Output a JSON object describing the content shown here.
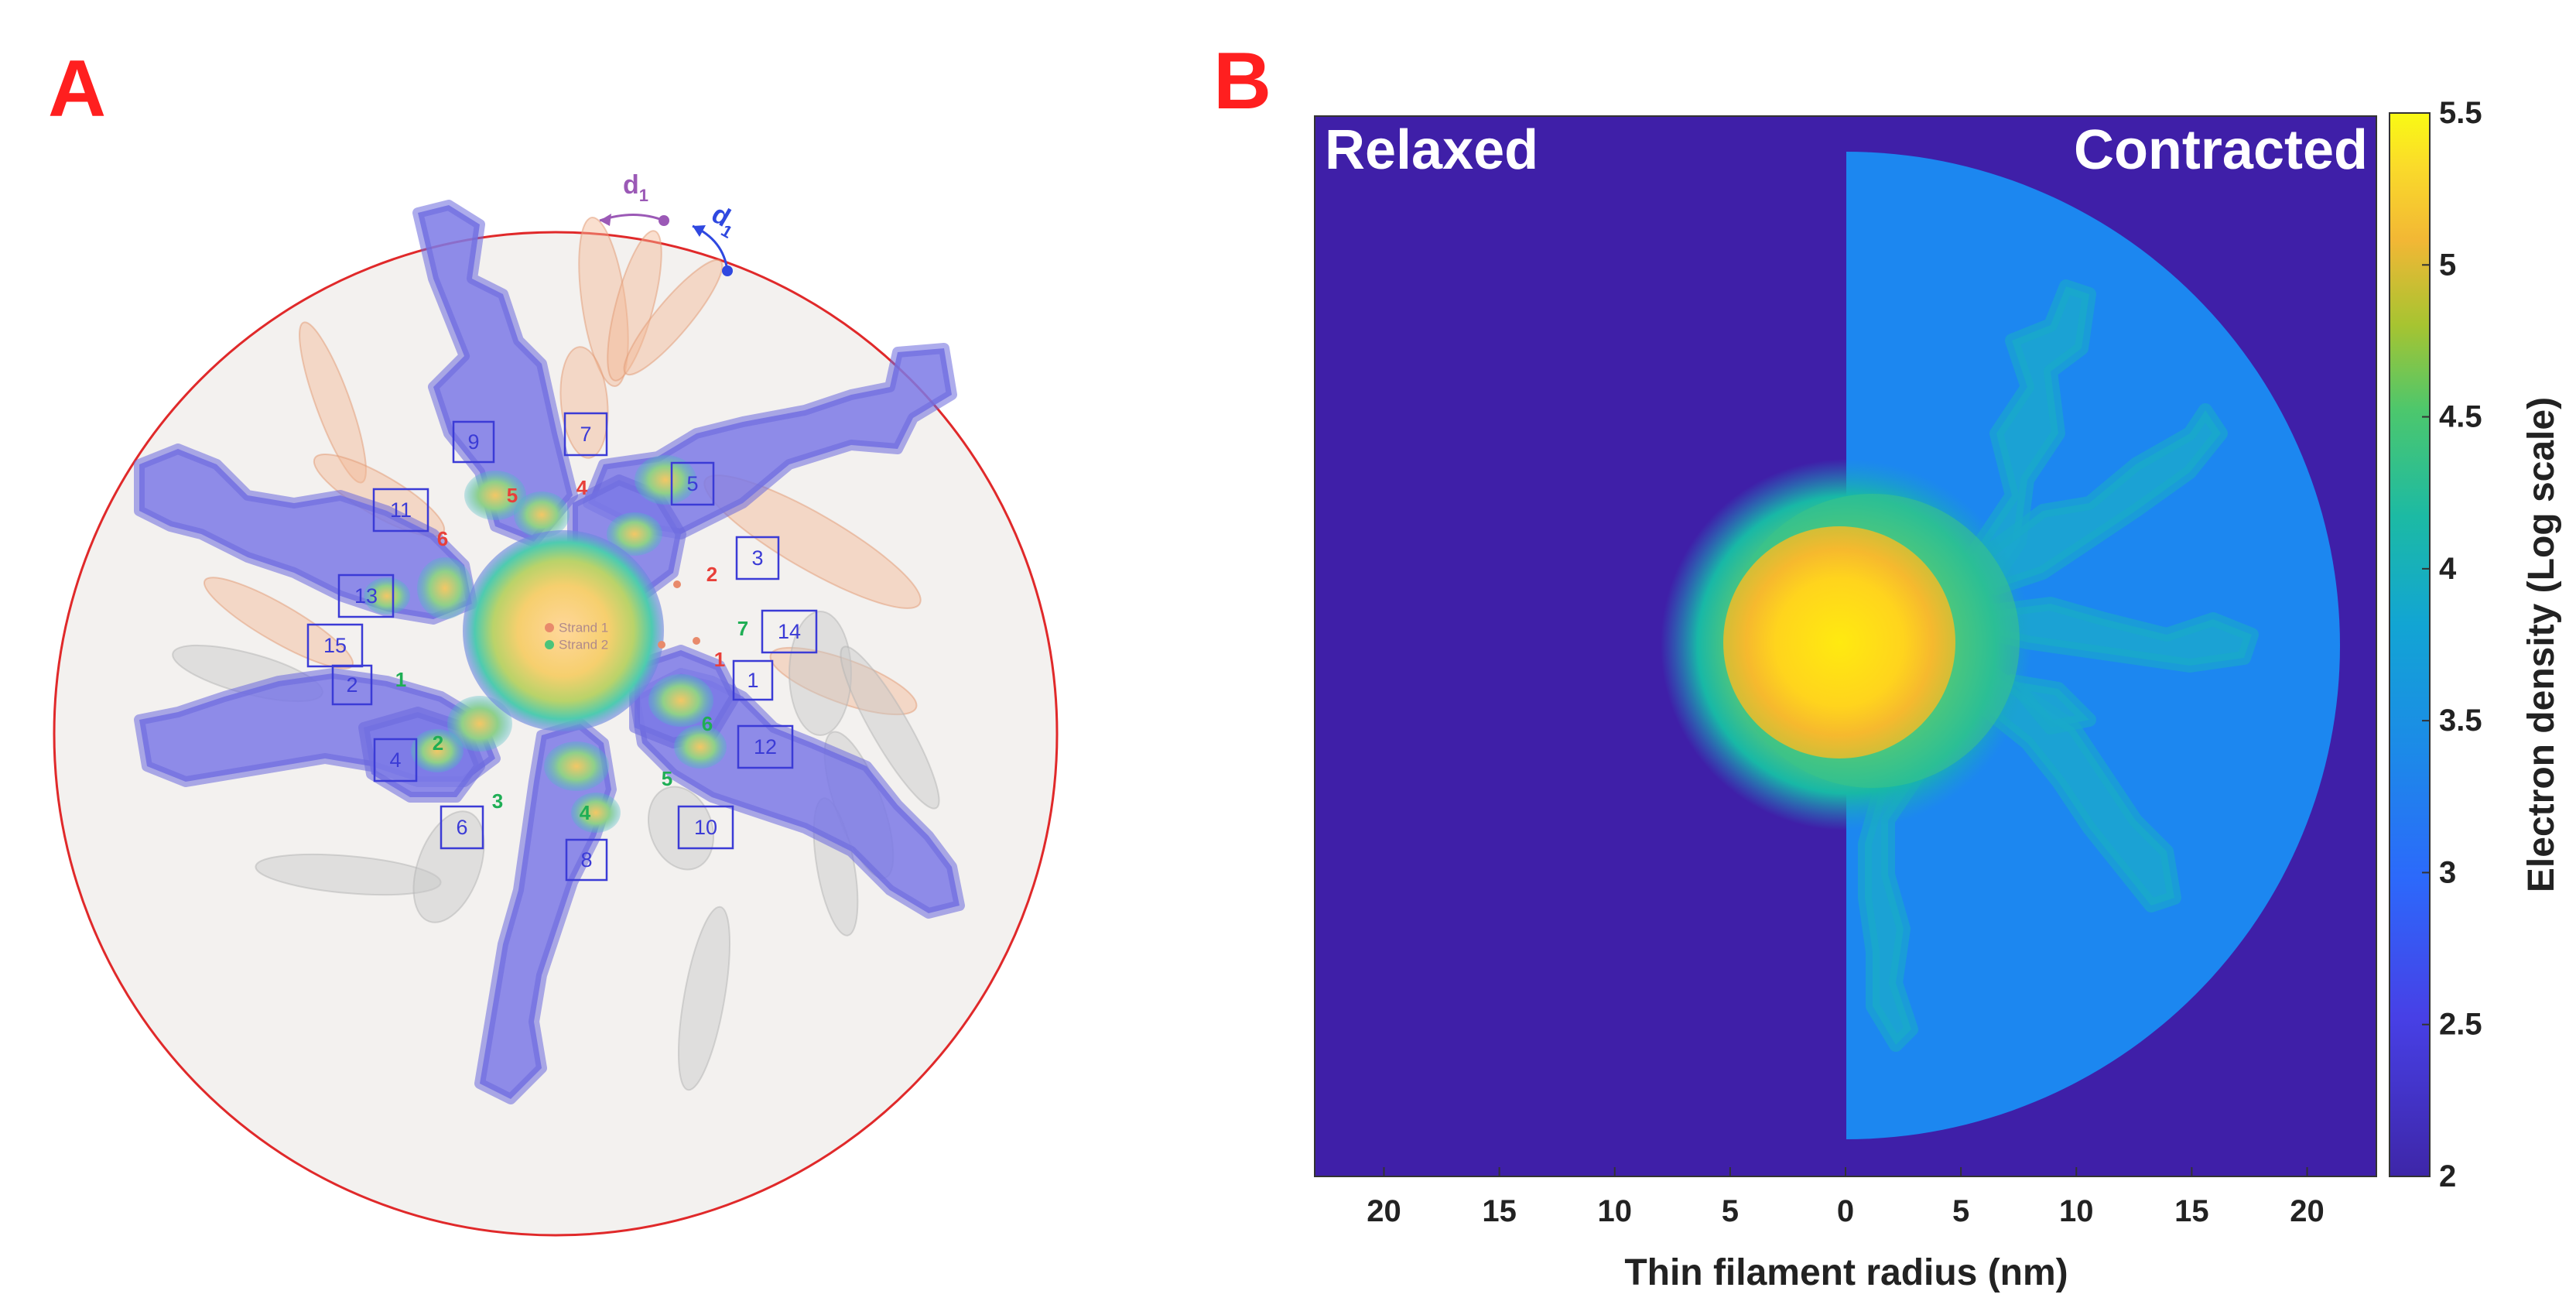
{
  "panel_a": {
    "letter": "A",
    "boxed_numbers": [
      "1",
      "2",
      "3",
      "4",
      "5",
      "6",
      "7",
      "8",
      "9",
      "10",
      "11",
      "12",
      "13",
      "14",
      "15"
    ],
    "red_numbers": [
      "1",
      "2",
      "4",
      "5",
      "6"
    ],
    "green_numbers": [
      "1",
      "2",
      "3",
      "4",
      "5",
      "6",
      "7"
    ],
    "strand_labels": [
      "Strand 1",
      "Strand 2"
    ],
    "distance_label": "d",
    "distance_subscript": "1"
  },
  "panel_b": {
    "letter": "B",
    "left_label": "Relaxed",
    "right_label": "Contracted"
  },
  "chart_data": {
    "type": "heatmap",
    "xlabel": "Thin filament radius (nm)",
    "x_ticks": [
      "20",
      "15",
      "10",
      "5",
      "0",
      "5",
      "10",
      "15",
      "20"
    ],
    "x_tick_values": [
      -20,
      -15,
      -10,
      -5,
      0,
      5,
      10,
      15,
      20
    ],
    "xlim": [
      -23,
      23
    ],
    "colorbar": {
      "label": "Electron density (Log scale)",
      "ticks": [
        "2",
        "2.5",
        "3",
        "3.5",
        "4",
        "4.5",
        "5",
        "5.5"
      ],
      "tick_values": [
        2,
        2.5,
        3,
        3.5,
        4,
        4.5,
        5,
        5.5
      ],
      "range": [
        2,
        5.5
      ],
      "colormap": "parula"
    },
    "regions": [
      {
        "side": "left",
        "background_value": 2.0
      },
      {
        "side": "right",
        "halfdisk_radius_nm": 21,
        "halfdisk_value": 3.0
      }
    ]
  },
  "colors": {
    "panel_letter": "#ff1f1f",
    "background_dark": "#3f1fa8",
    "halfdisk": "#1c87f0",
    "core": "#ffd21c"
  }
}
